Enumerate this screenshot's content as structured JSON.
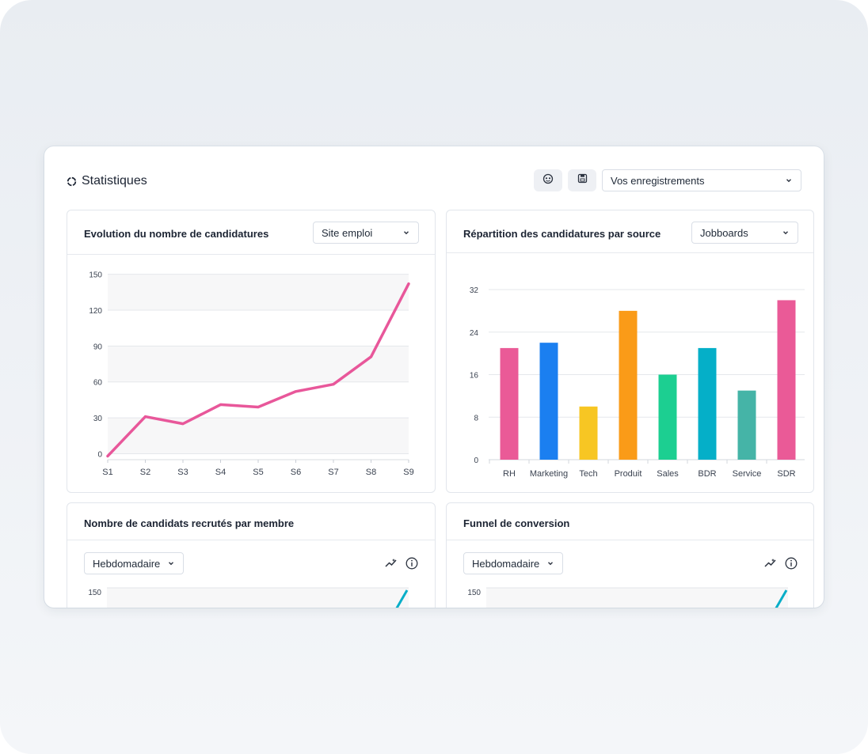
{
  "header": {
    "title": "Statistiques",
    "saved_select": "Vos enregistrements",
    "icons": [
      "filter-mask-icon",
      "save-icon",
      "chevron-down-icon"
    ]
  },
  "cards": {
    "evolution": {
      "title": "Evolution du nombre de candidatures",
      "filter": "Site emploi"
    },
    "repartition": {
      "title": "Répartition des candidatures par source",
      "filter": "Jobboards"
    },
    "recrutes": {
      "title": "Nombre de candidats recrutés par membre",
      "filter": "Hebdomadaire",
      "y_top_tick": "150"
    },
    "funnel": {
      "title": "Funnel de conversion",
      "filter": "Hebdomadaire",
      "y_top_tick": "150"
    }
  },
  "chart_data": [
    {
      "type": "line",
      "categories": [
        "S1",
        "S2",
        "S3",
        "S4",
        "S5",
        "S6",
        "S7",
        "S8",
        "S9"
      ],
      "series": [
        {
          "values": [
            -2,
            31,
            25,
            41,
            39,
            52,
            58,
            81,
            142
          ],
          "color": "#e8579a"
        }
      ],
      "yticks": [
        "150",
        "120",
        "90",
        "60",
        "30",
        "0"
      ],
      "ylim": [
        -5,
        155
      ],
      "grid": "alternating-bands"
    },
    {
      "type": "bar",
      "categories": [
        "RH",
        "Marketing",
        "Tech",
        "Produit",
        "Sales",
        "BDR",
        "Service",
        "SDR"
      ],
      "values": [
        21,
        22,
        10,
        28,
        16,
        21,
        13,
        30
      ],
      "colors": [
        "#ea5a97",
        "#1b7ff0",
        "#f7c623",
        "#fa9b18",
        "#1ccf91",
        "#05afc8",
        "#45b4a7",
        "#ea5a97"
      ],
      "yticks": [
        "32",
        "24",
        "16",
        "8",
        "0"
      ],
      "ylim": [
        0,
        32
      ],
      "grid": "horizontal-lines"
    }
  ]
}
